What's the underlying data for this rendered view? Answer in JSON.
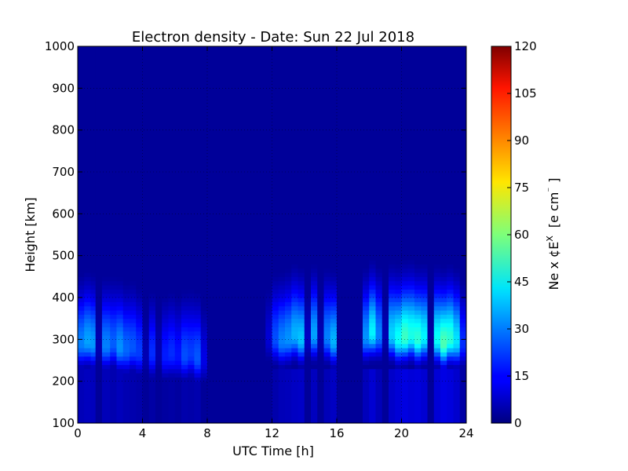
{
  "chart_data": {
    "type": "heatmap",
    "title": "Electron density - Date: Sun 22 Jul 2018",
    "xlabel": "UTC Time [h]",
    "ylabel": "Height [km]",
    "colorbar_label": "Ne x ¢E",
    "colorbar_label_sup": "X",
    "colorbar_label_units": "[e cm",
    "colorbar_label_units_sup": "⁻",
    "colorbar_label_units_end": "]",
    "xlim": [
      0,
      24
    ],
    "ylim": [
      100,
      1000
    ],
    "clim": [
      0,
      120
    ],
    "xticks": [
      0,
      4,
      8,
      12,
      16,
      20,
      24
    ],
    "yticks": [
      100,
      200,
      300,
      400,
      500,
      600,
      700,
      800,
      900,
      1000
    ],
    "cticks": [
      0,
      15,
      30,
      45,
      60,
      75,
      90,
      105,
      120
    ],
    "colormap": "jet",
    "grid": true,
    "time_bins_h": [
      0.0,
      0.4,
      0.8,
      1.1,
      1.5,
      2.0,
      2.4,
      2.8,
      3.2,
      3.6,
      4.0,
      4.4,
      4.8,
      5.2,
      5.6,
      6.0,
      6.4,
      6.8,
      7.2,
      7.6,
      8.0,
      8.4,
      8.8,
      9.2,
      9.6,
      10.0,
      10.4,
      10.8,
      11.2,
      11.6,
      12.0,
      12.4,
      12.8,
      13.2,
      13.6,
      14.0,
      14.4,
      14.8,
      15.2,
      15.6,
      16.0,
      16.4,
      16.8,
      17.2,
      17.6,
      18.0,
      18.4,
      18.8,
      19.2,
      19.6,
      20.0,
      20.4,
      20.8,
      21.2,
      21.6,
      22.0,
      22.4,
      22.8,
      23.2,
      23.6
    ],
    "peak_density": [
      30,
      34,
      33,
      6,
      30,
      26,
      32,
      27,
      25,
      22,
      6,
      20,
      6,
      18,
      20,
      17,
      24,
      22,
      25,
      12,
      0,
      0,
      0,
      0,
      0,
      0,
      0,
      0,
      0,
      10,
      24,
      30,
      32,
      36,
      38,
      8,
      34,
      6,
      30,
      36,
      0,
      0,
      0,
      0,
      32,
      44,
      30,
      6,
      40,
      46,
      52,
      48,
      50,
      44,
      4,
      46,
      54,
      50,
      42,
      20
    ],
    "peak_height_km": [
      290,
      295,
      290,
      280,
      285,
      290,
      280,
      275,
      280,
      270,
      260,
      265,
      265,
      260,
      265,
      260,
      260,
      265,
      255,
      250,
      250,
      250,
      250,
      250,
      250,
      250,
      250,
      250,
      250,
      300,
      300,
      295,
      300,
      310,
      300,
      300,
      310,
      300,
      305,
      295,
      300,
      300,
      300,
      300,
      305,
      315,
      310,
      305,
      310,
      300,
      305,
      310,
      300,
      305,
      300,
      300,
      290,
      300,
      295,
      290
    ]
  }
}
